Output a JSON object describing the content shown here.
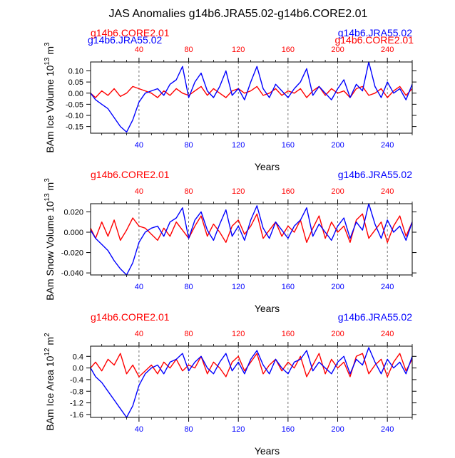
{
  "title": "JAS Anomalies g14b6.JRA55.02-g14b6.CORE2.01",
  "colors": {
    "series_a": "#ff0000",
    "series_b": "#0000ff",
    "axis": "#000000"
  },
  "chart_data": [
    {
      "type": "line",
      "xlabel": "Years",
      "ylabel": "BAm Ice Volume",
      "yunit_base": "10",
      "yunit_exp": "13",
      "yunit_m": "m",
      "yunit_mexp": "3",
      "xlim": [
        1,
        260
      ],
      "ylim": [
        -0.18,
        0.14
      ],
      "yticks": [
        0.1,
        0.05,
        0.0,
        -0.05,
        -0.1,
        -0.15
      ],
      "ytick_labels": [
        "0.10",
        "0.05",
        "0.00",
        "-0.05",
        "-0.10",
        "-0.15"
      ],
      "top_series_left": "g14b6.CORE2.01",
      "top_series_right": "g14b6.JRA55.02",
      "top_overlap_left": "g14b6.JRA55.02",
      "top_overlap_right": "g14b6.CORE2.01",
      "xticks": [
        40,
        80,
        120,
        160,
        200,
        240
      ],
      "xtick_labels": [
        "40",
        "80",
        "120",
        "160",
        "200",
        "240"
      ],
      "top_xtick_labels": [
        "40",
        "80",
        "120",
        "160",
        "200",
        "240"
      ],
      "series": [
        {
          "name": "g14b6.CORE2.01",
          "x": [
            1,
            5,
            10,
            15,
            20,
            25,
            30,
            35,
            40,
            45,
            50,
            55,
            60,
            65,
            70,
            75,
            80,
            85,
            90,
            95,
            100,
            105,
            110,
            115,
            120,
            125,
            130,
            135,
            140,
            145,
            150,
            155,
            160,
            165,
            170,
            175,
            180,
            185,
            190,
            195,
            200,
            205,
            210,
            215,
            220,
            225,
            230,
            235,
            240,
            245,
            250,
            255,
            260
          ],
          "values": [
            0.0,
            -0.02,
            0.01,
            -0.01,
            0.02,
            -0.015,
            0.0,
            0.03,
            0.02,
            0.01,
            0.0,
            -0.02,
            0.01,
            -0.01,
            0.02,
            0.0,
            -0.01,
            0.01,
            0.03,
            -0.01,
            0.02,
            0.0,
            -0.02,
            0.01,
            0.02,
            0.0,
            0.01,
            0.03,
            -0.01,
            0.0,
            0.02,
            -0.01,
            0.01,
            0.0,
            0.02,
            -0.02,
            0.01,
            0.03,
            -0.01,
            0.02,
            0.0,
            0.01,
            -0.02,
            0.02,
            0.03,
            -0.01,
            0.0,
            0.02,
            -0.02,
            0.01,
            0.03,
            -0.01,
            0.02
          ]
        },
        {
          "name": "g14b6.JRA55.02",
          "x": [
            1,
            5,
            10,
            15,
            20,
            25,
            30,
            35,
            40,
            45,
            50,
            55,
            60,
            65,
            70,
            75,
            80,
            85,
            90,
            95,
            100,
            105,
            110,
            115,
            120,
            125,
            130,
            135,
            140,
            145,
            150,
            155,
            160,
            165,
            170,
            175,
            180,
            185,
            190,
            195,
            200,
            205,
            210,
            215,
            220,
            225,
            230,
            235,
            240,
            245,
            250,
            255,
            260
          ],
          "values": [
            0.0,
            -0.03,
            -0.05,
            -0.07,
            -0.11,
            -0.15,
            -0.175,
            -0.12,
            -0.04,
            0.0,
            0.01,
            0.02,
            -0.01,
            0.04,
            0.06,
            0.12,
            -0.02,
            0.05,
            0.09,
            0.01,
            -0.02,
            0.03,
            0.1,
            -0.01,
            0.02,
            -0.03,
            0.05,
            0.12,
            0.02,
            -0.02,
            0.04,
            0.01,
            -0.02,
            0.02,
            0.05,
            0.11,
            -0.01,
            0.03,
            0.0,
            -0.03,
            0.02,
            0.06,
            -0.02,
            0.04,
            0.01,
            0.14,
            0.03,
            -0.02,
            0.05,
            0.0,
            0.02,
            -0.03,
            0.04
          ]
        }
      ]
    },
    {
      "type": "line",
      "xlabel": "Years",
      "ylabel": "BAm Snow Volume",
      "yunit_base": "10",
      "yunit_exp": "13",
      "yunit_m": "m",
      "yunit_mexp": "3",
      "xlim": [
        1,
        260
      ],
      "ylim": [
        -0.042,
        0.028
      ],
      "yticks": [
        0.02,
        0.0,
        -0.02,
        -0.04
      ],
      "ytick_labels": [
        "0.020",
        "0.000",
        "-0.020",
        "-0.040"
      ],
      "top_series_left": "g14b6.CORE2.01",
      "top_series_right": "g14b6.JRA55.02",
      "xticks": [
        40,
        80,
        120,
        160,
        200,
        240
      ],
      "xtick_labels": [
        "40",
        "80",
        "120",
        "160",
        "200",
        "240"
      ],
      "top_xtick_labels": [
        "40",
        "80",
        "120",
        "160",
        "200",
        "240"
      ],
      "series": [
        {
          "name": "g14b6.CORE2.01",
          "x": [
            1,
            5,
            10,
            15,
            20,
            25,
            30,
            35,
            40,
            45,
            50,
            55,
            60,
            65,
            70,
            75,
            80,
            85,
            90,
            95,
            100,
            105,
            110,
            115,
            120,
            125,
            130,
            135,
            140,
            145,
            150,
            155,
            160,
            165,
            170,
            175,
            180,
            185,
            190,
            195,
            200,
            205,
            210,
            215,
            220,
            225,
            230,
            235,
            240,
            245,
            250,
            255,
            260
          ],
          "values": [
            0.004,
            -0.006,
            0.01,
            -0.004,
            0.012,
            -0.008,
            0.002,
            0.014,
            0.006,
            0.004,
            -0.002,
            -0.008,
            0.004,
            -0.004,
            0.01,
            0.002,
            -0.006,
            0.006,
            0.016,
            -0.004,
            0.008,
            0.0,
            -0.01,
            0.006,
            0.012,
            -0.002,
            0.006,
            0.018,
            -0.006,
            0.002,
            0.01,
            -0.004,
            0.006,
            0.0,
            0.012,
            -0.01,
            0.004,
            0.016,
            -0.006,
            0.01,
            0.0,
            0.006,
            -0.01,
            0.012,
            0.018,
            -0.006,
            0.002,
            0.01,
            -0.01,
            0.006,
            0.016,
            -0.004,
            0.01
          ]
        },
        {
          "name": "g14b6.JRA55.02",
          "x": [
            1,
            5,
            10,
            15,
            20,
            25,
            30,
            35,
            40,
            45,
            50,
            55,
            60,
            65,
            70,
            75,
            80,
            85,
            90,
            95,
            100,
            105,
            110,
            115,
            120,
            125,
            130,
            135,
            140,
            145,
            150,
            155,
            160,
            165,
            170,
            175,
            180,
            185,
            190,
            195,
            200,
            205,
            210,
            215,
            220,
            225,
            230,
            235,
            240,
            245,
            250,
            255,
            260
          ],
          "values": [
            0.002,
            -0.006,
            -0.012,
            -0.018,
            -0.028,
            -0.036,
            -0.042,
            -0.03,
            -0.01,
            0.0,
            0.004,
            0.006,
            -0.004,
            0.01,
            0.014,
            0.024,
            -0.006,
            0.012,
            0.02,
            0.002,
            -0.008,
            0.008,
            0.022,
            -0.004,
            0.006,
            -0.008,
            0.012,
            0.026,
            0.004,
            -0.006,
            0.01,
            0.002,
            -0.006,
            0.006,
            0.012,
            0.024,
            -0.004,
            0.008,
            0.0,
            -0.008,
            0.006,
            0.014,
            -0.006,
            0.01,
            0.002,
            0.028,
            0.008,
            -0.006,
            0.012,
            0.0,
            0.006,
            -0.008,
            0.01
          ]
        }
      ]
    },
    {
      "type": "line",
      "xlabel": "Years",
      "ylabel": "BAm Ice Area",
      "yunit_base": "10",
      "yunit_exp": "12",
      "yunit_m": "m",
      "yunit_mexp": "2",
      "xlim": [
        1,
        260
      ],
      "ylim": [
        -1.7,
        0.75
      ],
      "yticks": [
        0.4,
        0.0,
        -0.4,
        -0.8,
        -1.2,
        -1.6
      ],
      "ytick_labels": [
        "0.4",
        "0.0",
        "-0.4",
        "-0.8",
        "-1.2",
        "-1.6"
      ],
      "top_series_left": "g14b6.CORE2.01",
      "top_series_right": "g14b6.JRA55.02",
      "xticks": [
        40,
        80,
        120,
        160,
        200,
        240
      ],
      "xtick_labels": [
        "40",
        "80",
        "120",
        "160",
        "200",
        "240"
      ],
      "top_xtick_labels": [
        "40",
        "80",
        "120",
        "160",
        "200",
        "240"
      ],
      "series": [
        {
          "name": "g14b6.CORE2.01",
          "x": [
            1,
            5,
            10,
            15,
            20,
            25,
            30,
            35,
            40,
            45,
            50,
            55,
            60,
            65,
            70,
            75,
            80,
            85,
            90,
            95,
            100,
            105,
            110,
            115,
            120,
            125,
            130,
            135,
            140,
            145,
            150,
            155,
            160,
            165,
            170,
            175,
            180,
            185,
            190,
            195,
            200,
            205,
            210,
            215,
            220,
            225,
            230,
            235,
            240,
            245,
            250,
            255,
            260
          ],
          "values": [
            0.0,
            0.2,
            -0.1,
            0.3,
            0.1,
            0.5,
            -0.2,
            0.1,
            -0.3,
            -0.1,
            0.1,
            -0.2,
            0.2,
            0.0,
            0.3,
            -0.1,
            0.1,
            0.0,
            0.4,
            -0.2,
            0.2,
            0.0,
            -0.3,
            0.2,
            0.4,
            -0.1,
            0.2,
            0.5,
            -0.2,
            0.1,
            0.3,
            -0.1,
            0.2,
            0.0,
            0.4,
            -0.3,
            0.1,
            0.5,
            -0.2,
            0.3,
            0.0,
            0.2,
            -0.3,
            0.4,
            0.5,
            -0.2,
            0.1,
            0.3,
            -0.3,
            0.2,
            0.5,
            -0.1,
            0.3
          ]
        },
        {
          "name": "g14b6.JRA55.02",
          "x": [
            1,
            5,
            10,
            15,
            20,
            25,
            30,
            35,
            40,
            45,
            50,
            55,
            60,
            65,
            70,
            75,
            80,
            85,
            90,
            95,
            100,
            105,
            110,
            115,
            120,
            125,
            130,
            135,
            140,
            145,
            150,
            155,
            160,
            165,
            170,
            175,
            180,
            185,
            190,
            195,
            200,
            205,
            210,
            215,
            220,
            225,
            230,
            235,
            240,
            245,
            250,
            255,
            260
          ],
          "values": [
            0.0,
            -0.3,
            -0.5,
            -0.8,
            -1.1,
            -1.4,
            -1.7,
            -1.3,
            -0.6,
            -0.2,
            0.0,
            0.1,
            -0.2,
            0.2,
            0.3,
            0.5,
            -0.1,
            0.2,
            0.4,
            0.0,
            -0.2,
            0.2,
            0.5,
            -0.1,
            0.2,
            -0.2,
            0.3,
            0.6,
            0.1,
            -0.2,
            0.3,
            0.0,
            -0.2,
            0.2,
            0.3,
            0.6,
            -0.1,
            0.2,
            0.0,
            -0.2,
            0.2,
            0.4,
            -0.2,
            0.3,
            0.1,
            0.7,
            0.2,
            -0.2,
            0.3,
            0.0,
            0.2,
            -0.2,
            0.4
          ]
        }
      ]
    }
  ]
}
